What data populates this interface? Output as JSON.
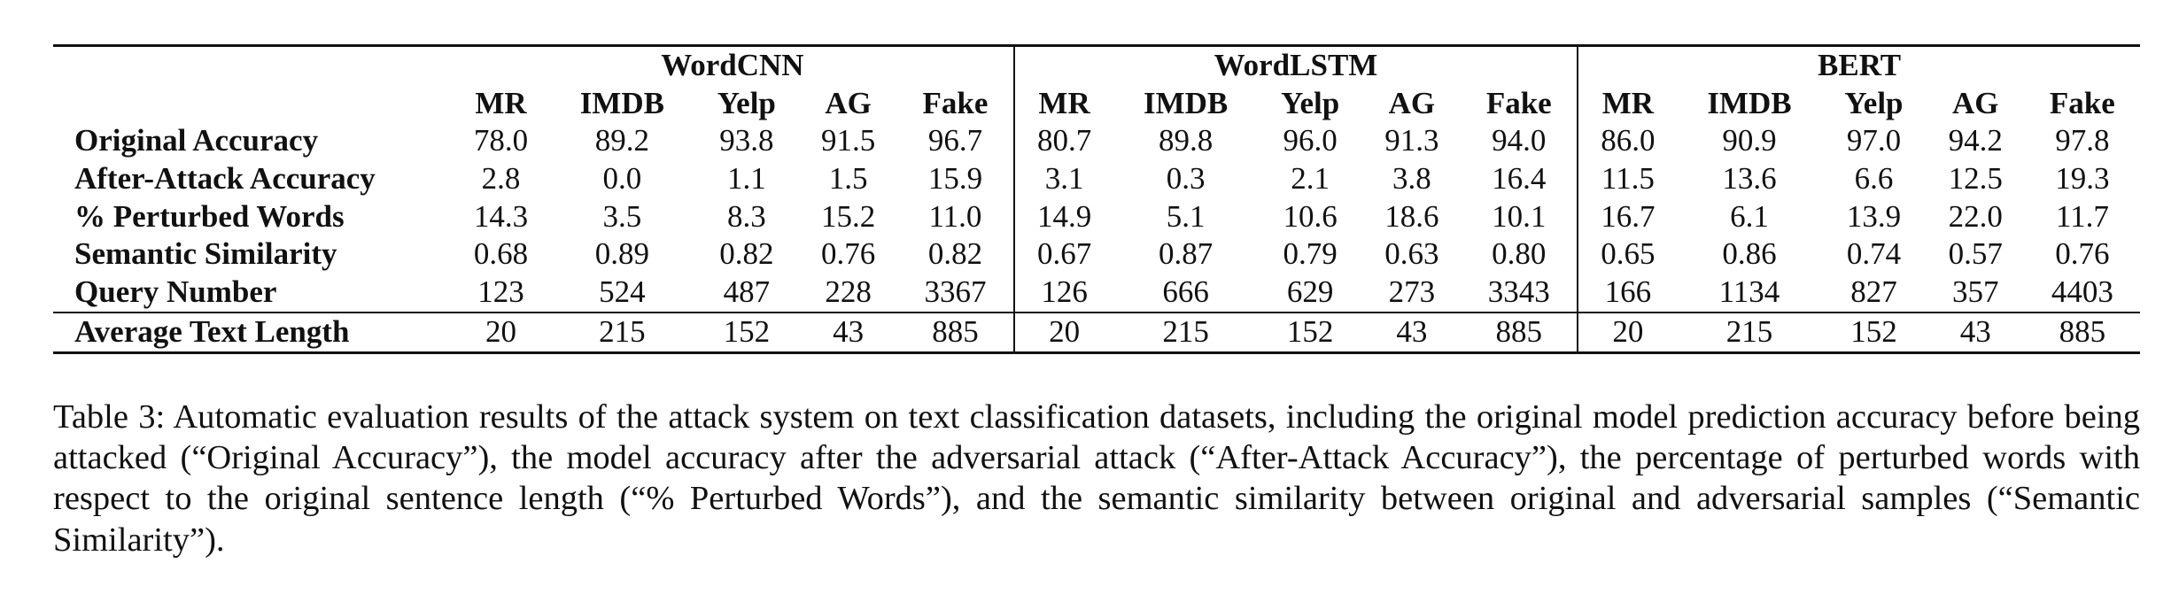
{
  "table": {
    "groups": [
      "WordCNN",
      "WordLSTM",
      "BERT"
    ],
    "datasets": [
      "MR",
      "IMDB",
      "Yelp",
      "AG",
      "Fake"
    ],
    "rows": [
      {
        "label": "Original Accuracy",
        "values": [
          "78.0",
          "89.2",
          "93.8",
          "91.5",
          "96.7",
          "80.7",
          "89.8",
          "96.0",
          "91.3",
          "94.0",
          "86.0",
          "90.9",
          "97.0",
          "94.2",
          "97.8"
        ]
      },
      {
        "label": "After-Attack Accuracy",
        "values": [
          "2.8",
          "0.0",
          "1.1",
          "1.5",
          "15.9",
          "3.1",
          "0.3",
          "2.1",
          "3.8",
          "16.4",
          "11.5",
          "13.6",
          "6.6",
          "12.5",
          "19.3"
        ]
      },
      {
        "label": "% Perturbed Words",
        "values": [
          "14.3",
          "3.5",
          "8.3",
          "15.2",
          "11.0",
          "14.9",
          "5.1",
          "10.6",
          "18.6",
          "10.1",
          "16.7",
          "6.1",
          "13.9",
          "22.0",
          "11.7"
        ]
      },
      {
        "label": "Semantic Similarity",
        "values": [
          "0.68",
          "0.89",
          "0.82",
          "0.76",
          "0.82",
          "0.67",
          "0.87",
          "0.79",
          "0.63",
          "0.80",
          "0.65",
          "0.86",
          "0.74",
          "0.57",
          "0.76"
        ]
      },
      {
        "label": "Query Number",
        "values": [
          "123",
          "524",
          "487",
          "228",
          "3367",
          "126",
          "666",
          "629",
          "273",
          "3343",
          "166",
          "1134",
          "827",
          "357",
          "4403"
        ]
      }
    ],
    "last_row": {
      "label": "Average Text Length",
      "values": [
        "20",
        "215",
        "152",
        "43",
        "885",
        "20",
        "215",
        "152",
        "43",
        "885",
        "20",
        "215",
        "152",
        "43",
        "885"
      ]
    }
  },
  "caption": "Table 3: Automatic evaluation results of the attack system on text classification datasets, including the original model prediction accuracy before being attacked (“Original Accuracy”), the model accuracy after the adversarial attack (“After-Attack Accuracy”), the percentage of perturbed words with respect to the original sentence length (“% Perturbed Words”), and the semantic similarity between original and adversarial samples (“Semantic Similarity”)."
}
